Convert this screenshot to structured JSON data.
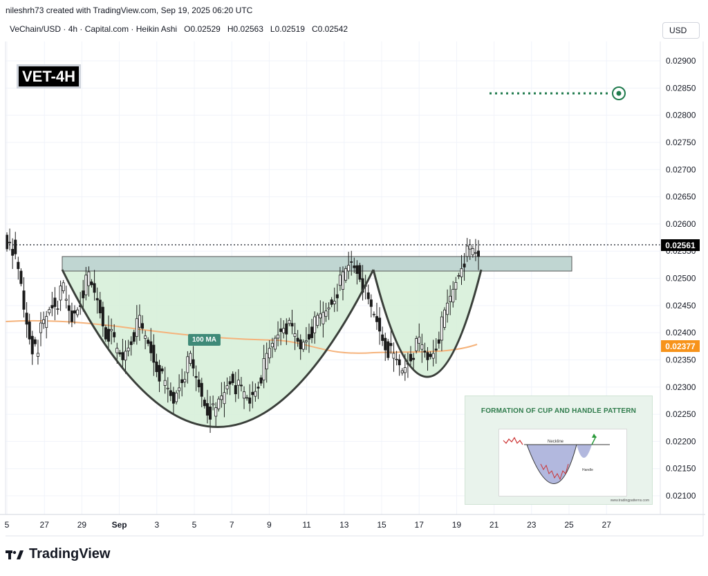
{
  "header": {
    "created_by": "nileshrh73 created with TradingView.com, Sep 19, 2025 06:20 UTC"
  },
  "legend": {
    "symbol": "VeChain/USD · 4h · Capital.com · Heikin Ashi",
    "open": "O0.02529",
    "high": "H0.02563",
    "low": "L0.02519",
    "close": "C0.02542"
  },
  "currency_button": "USD",
  "ticker_label": "VET-4H",
  "ma_label": "100 MA",
  "last_price": "0.02561",
  "ma_price": "0.02377",
  "brand": "TradingView",
  "inset": {
    "title": "FORMATION OF CUP AND HANDLE PATTERN",
    "neckline_label": "Neckline",
    "handle_label": "Handle",
    "credit": "www.tradingpatterns.com"
  },
  "colors": {
    "up_candle": "#1a1a1a",
    "down_candle": "#ffffff",
    "cup_fill": "#d7efd9",
    "resistance_zone": "#c0d6d2",
    "ma_line": "#f5b27a",
    "target_dots": "#1e7a4c",
    "price_badge": "#000000",
    "ma_badge": "#f7931a"
  },
  "chart_data": {
    "type": "candlestick",
    "y_axis": {
      "ticks": [
        "0.02900",
        "0.02850",
        "0.02800",
        "0.02750",
        "0.02700",
        "0.02650",
        "0.02600",
        "0.02550",
        "0.02500",
        "0.02450",
        "0.02400",
        "0.02350",
        "0.02300",
        "0.02250",
        "0.02200",
        "0.02150",
        "0.02100"
      ],
      "range": [
        0.0207,
        0.0297
      ]
    },
    "x_axis": {
      "ticks": [
        "5",
        "27",
        "29",
        "Sep",
        "3",
        "5",
        "7",
        "9",
        "11",
        "13",
        "15",
        "17",
        "19",
        "21",
        "23",
        "25",
        "27"
      ]
    },
    "annotations": {
      "resistance_zone": [
        0.02518,
        0.02542
      ],
      "cup_bottom": 0.02229,
      "handle_bottom": 0.02318,
      "target_level": 0.0284,
      "last_price_line": 0.02561,
      "ma_100_end": 0.02377
    },
    "candle_path": [
      [
        0.0259,
        0.0253
      ],
      [
        0.0256,
        0.0249
      ],
      [
        0.0247,
        0.024
      ],
      [
        0.0239,
        0.0235
      ],
      [
        0.024,
        0.0243
      ],
      [
        0.0244,
        0.0246
      ],
      [
        0.0245,
        0.0248
      ],
      [
        0.0247,
        0.0242
      ],
      [
        0.0243,
        0.0246
      ],
      [
        0.0247,
        0.025
      ],
      [
        0.0249,
        0.0246
      ],
      [
        0.0246,
        0.024
      ],
      [
        0.0241,
        0.0238
      ],
      [
        0.0237,
        0.0235
      ],
      [
        0.0236,
        0.0239
      ],
      [
        0.0239,
        0.0242
      ],
      [
        0.0241,
        0.0238
      ],
      [
        0.0238,
        0.0234
      ],
      [
        0.0234,
        0.023
      ],
      [
        0.023,
        0.0227
      ],
      [
        0.0228,
        0.0232
      ],
      [
        0.0232,
        0.0235
      ],
      [
        0.0234,
        0.023
      ],
      [
        0.023,
        0.0226
      ],
      [
        0.0226,
        0.0225
      ],
      [
        0.0226,
        0.0229
      ],
      [
        0.023,
        0.0232
      ],
      [
        0.0231,
        0.0229
      ],
      [
        0.0229,
        0.0227
      ],
      [
        0.0228,
        0.0231
      ],
      [
        0.0231,
        0.0235
      ],
      [
        0.0235,
        0.0239
      ],
      [
        0.0239,
        0.0242
      ],
      [
        0.0242,
        0.024
      ],
      [
        0.024,
        0.0237
      ],
      [
        0.0238,
        0.024
      ],
      [
        0.024,
        0.0242
      ],
      [
        0.0242,
        0.0244
      ],
      [
        0.0244,
        0.0247
      ],
      [
        0.0247,
        0.025
      ],
      [
        0.025,
        0.0253
      ],
      [
        0.0253,
        0.0251
      ],
      [
        0.0251,
        0.0245
      ],
      [
        0.0245,
        0.0242
      ],
      [
        0.0242,
        0.0238
      ],
      [
        0.0238,
        0.0235
      ],
      [
        0.0235,
        0.0233
      ],
      [
        0.0233,
        0.0236
      ],
      [
        0.0236,
        0.0238
      ],
      [
        0.0238,
        0.0235
      ],
      [
        0.0235,
        0.0238
      ],
      [
        0.0238,
        0.0243
      ],
      [
        0.0243,
        0.0248
      ],
      [
        0.0248,
        0.0253
      ],
      [
        0.0253,
        0.0255
      ],
      [
        0.0255,
        0.0254
      ]
    ]
  }
}
